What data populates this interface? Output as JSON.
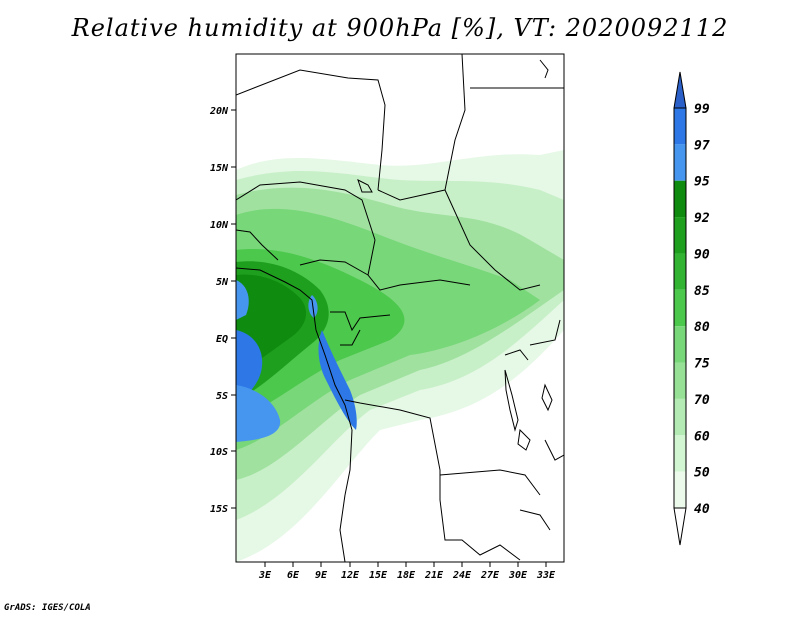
{
  "title": "Relative humidity at 900hPa [%], VT: 2020092112",
  "credit": "GrADS: IGES/COLA",
  "map": {
    "lat_ticks": [
      "20N",
      "15N",
      "10N",
      "5N",
      "EQ",
      "5S",
      "10S",
      "15S"
    ],
    "lon_ticks": [
      "3E",
      "6E",
      "9E",
      "12E",
      "15E",
      "18E",
      "21E",
      "24E",
      "27E",
      "30E",
      "33E"
    ]
  },
  "colorbar": {
    "levels": [
      "99",
      "97",
      "95",
      "92",
      "90",
      "85",
      "80",
      "75",
      "70",
      "60",
      "50",
      "40"
    ],
    "colors": [
      "#1e50c8",
      "#2d78e6",
      "#4696f0",
      "#0f8c0f",
      "#1ea01e",
      "#32b432",
      "#4cc84c",
      "#78d778",
      "#96e196",
      "#b4ebb4",
      "#d2f5d2",
      "#ebfaeb"
    ],
    "top_color": "#2a60c8",
    "bottom_color": "#ffffff"
  }
}
